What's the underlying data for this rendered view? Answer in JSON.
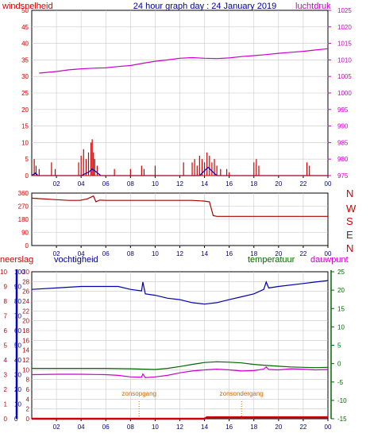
{
  "header": {
    "left_label": "windsnelheid",
    "title": "24 hour graph day : 24 January 2019",
    "right_label": "luchtdruk"
  },
  "colors": {
    "background": "#ffffff",
    "frame": "#000000",
    "plot_bg": "#ffffff",
    "grid": "#c8c8c8",
    "wind": "#cc0000",
    "wind_avg": "#0000cc",
    "pressure": "#cc00cc",
    "direction": "#aa0000",
    "humidity": "#0000aa",
    "temperature": "#006600",
    "dewpoint": "#cc00cc",
    "rain": "#cc0000",
    "sun": "#cc6600"
  },
  "x_ticks": [
    "02",
    "04",
    "06",
    "08",
    "10",
    "12",
    "14",
    "16",
    "18",
    "20",
    "22",
    "00"
  ],
  "chart_data": [
    {
      "type": "line",
      "name_left": "windsnelheid",
      "name_right": "luchtdruk",
      "x_range": [
        0,
        24
      ],
      "left_axis": {
        "ticks": [
          "0",
          "5",
          "10",
          "15",
          "20",
          "25",
          "30",
          "35",
          "40",
          "45",
          "50"
        ],
        "ylim": [
          0,
          50
        ]
      },
      "right_axis": {
        "ticks": [
          "975",
          "980",
          "985",
          "990",
          "995",
          "1000",
          "1005",
          "1010",
          "1015",
          "1020",
          "1025"
        ],
        "ylim": [
          975,
          1025
        ]
      },
      "grid": true,
      "series": [
        {
          "name": "luchtdruk",
          "axis": "right",
          "x": [
            0.6,
            2,
            3,
            4,
            5,
            6,
            7,
            8,
            9,
            10,
            11,
            12,
            13,
            14,
            15,
            16,
            17,
            18,
            19,
            20,
            21,
            22,
            23,
            24
          ],
          "y": [
            1006,
            1006.5,
            1007,
            1007.3,
            1007.5,
            1007.6,
            1008,
            1008.3,
            1009,
            1009.6,
            1010,
            1010.5,
            1010.7,
            1010.5,
            1010.4,
            1010.6,
            1011,
            1011.3,
            1011.6,
            1012,
            1012.3,
            1012.6,
            1013,
            1013.4
          ]
        },
        {
          "name": "wind_gust",
          "axis": "left",
          "bars": [
            [
              0.2,
              5
            ],
            [
              0.35,
              3
            ],
            [
              0.6,
              2
            ],
            [
              1.6,
              4
            ],
            [
              1.9,
              2
            ],
            [
              3.8,
              4
            ],
            [
              4.0,
              6
            ],
            [
              4.2,
              8
            ],
            [
              4.4,
              5
            ],
            [
              4.6,
              7
            ],
            [
              4.8,
              10
            ],
            [
              4.9,
              11
            ],
            [
              5.0,
              7
            ],
            [
              5.1,
              5
            ],
            [
              5.3,
              3
            ],
            [
              6.7,
              2
            ],
            [
              8.0,
              2
            ],
            [
              8.9,
              3
            ],
            [
              9.1,
              2
            ],
            [
              10.0,
              3
            ],
            [
              12.3,
              4
            ],
            [
              13.0,
              4
            ],
            [
              13.2,
              5
            ],
            [
              13.4,
              3
            ],
            [
              13.6,
              6
            ],
            [
              13.8,
              5
            ],
            [
              14.0,
              4
            ],
            [
              14.2,
              7
            ],
            [
              14.4,
              6
            ],
            [
              14.6,
              4
            ],
            [
              14.8,
              5
            ],
            [
              15.0,
              3
            ],
            [
              15.3,
              2
            ],
            [
              15.8,
              2
            ],
            [
              16.0,
              1
            ],
            [
              18.0,
              4
            ],
            [
              18.2,
              5
            ],
            [
              18.4,
              3
            ],
            [
              22.3,
              4
            ],
            [
              22.5,
              3
            ]
          ]
        },
        {
          "name": "wind_avg",
          "axis": "left",
          "x": [
            0,
            0.3,
            0.5,
            1,
            4,
            4.6,
            4.9,
            5.2,
            5.6,
            6,
            13.6,
            14,
            14.3,
            14.7,
            15,
            24
          ],
          "y": [
            0,
            0.8,
            0,
            0,
            0,
            1.0,
            2.0,
            1.2,
            0,
            0,
            0,
            1.5,
            2.5,
            1,
            0,
            0
          ]
        }
      ]
    },
    {
      "type": "line",
      "name": "wind direction",
      "x_range": [
        0,
        24
      ],
      "y_axis": {
        "ticks": [
          "0",
          "90",
          "180",
          "270",
          "360"
        ],
        "ylim": [
          0,
          360
        ]
      },
      "right_labels": [
        "N",
        "W",
        "S",
        "E",
        "N"
      ],
      "grid": true,
      "series": [
        {
          "name": "richting",
          "x": [
            0,
            2,
            3,
            3.9,
            4.5,
            5,
            5.2,
            5.5,
            6,
            8,
            10,
            12,
            13,
            14,
            14.4,
            14.7,
            15,
            16,
            18,
            20,
            22,
            24
          ],
          "y": [
            325,
            315,
            310,
            310,
            320,
            340,
            300,
            312,
            310,
            310,
            310,
            310,
            310,
            305,
            300,
            205,
            200,
            200,
            200,
            200,
            200,
            200
          ]
        }
      ]
    },
    {
      "type": "line",
      "labels": {
        "rain": "neerslag",
        "humidity": "vochtigheid",
        "temperature": "temperatuur",
        "dewpoint": "dauwpunt"
      },
      "x_range": [
        0,
        24
      ],
      "axes": {
        "rain": {
          "ticks": [
            "0",
            "1",
            "2",
            "3",
            "4",
            "5",
            "6",
            "7",
            "8",
            "9",
            "10"
          ],
          "ylim": [
            0,
            10
          ]
        },
        "humidity": {
          "ticks": [
            "0",
            "10",
            "20",
            "30",
            "40",
            "50",
            "60",
            "70",
            "80",
            "90",
            "100"
          ],
          "ylim": [
            0,
            100
          ]
        },
        "temperature": {
          "ticks": [
            "0",
            "2",
            "4",
            "6",
            "8",
            "10",
            "12",
            "14",
            "16",
            "18",
            "20",
            "22",
            "24",
            "26",
            "28",
            "30"
          ],
          "ylim": [
            0,
            30
          ]
        },
        "right": {
          "ticks": [
            "-15",
            "-10",
            "-5",
            "0",
            "5",
            "10",
            "15",
            "20",
            "25"
          ],
          "ylim": [
            -15,
            25
          ]
        }
      },
      "annotations": [
        {
          "text": "zonsopgang",
          "x": 8.7
        },
        {
          "text": "zonsondergang",
          "x": 17.0
        }
      ],
      "grid": true,
      "series": [
        {
          "name": "vochtigheid",
          "axis": "humidity",
          "x": [
            0,
            2,
            4,
            6,
            7,
            8,
            8.9,
            9.0,
            9.2,
            10,
            11,
            12,
            13,
            14,
            15,
            16,
            17,
            18,
            18.8,
            19,
            19.2,
            20,
            22,
            23,
            24
          ],
          "y": [
            88,
            89,
            90,
            90,
            90,
            88,
            87,
            93,
            85,
            84,
            82,
            81,
            79,
            78,
            79,
            81,
            83,
            85,
            88,
            93,
            89,
            90,
            92,
            93,
            94
          ]
        },
        {
          "name": "temperatuur",
          "axis": "right",
          "x": [
            0,
            2,
            4,
            6,
            8,
            10,
            11,
            12,
            13,
            14,
            15,
            16,
            17,
            18,
            19,
            20,
            21,
            22,
            23,
            24
          ],
          "y": [
            -1.3,
            -1.3,
            -1.3,
            -1.3,
            -1.4,
            -1.6,
            -1.3,
            -0.8,
            -0.2,
            0.3,
            0.5,
            0.4,
            0.2,
            -0.2,
            -0.5,
            -0.7,
            -0.9,
            -1.0,
            -1.1,
            -1.0
          ]
        },
        {
          "name": "dauwpunt",
          "axis": "right",
          "x": [
            0,
            2,
            4,
            6,
            7,
            8,
            8.9,
            9.0,
            9.2,
            10,
            11,
            12,
            13,
            14,
            15,
            16,
            17,
            18,
            18.8,
            19,
            19.2,
            20,
            21,
            22,
            23,
            24
          ],
          "y": [
            -3.0,
            -2.9,
            -2.9,
            -3.0,
            -3.2,
            -3.6,
            -3.7,
            -2.8,
            -3.8,
            -3.6,
            -3.2,
            -2.5,
            -2.0,
            -1.7,
            -1.5,
            -1.7,
            -2.0,
            -1.9,
            -1.5,
            -0.9,
            -1.6,
            -1.7,
            -1.4,
            -1.5,
            -1.7,
            -1.6
          ]
        },
        {
          "name": "neerslag",
          "axis": "rain",
          "x": [
            0,
            14,
            14.2,
            24
          ],
          "y": [
            0,
            0,
            0.1,
            0.1
          ]
        }
      ]
    }
  ]
}
